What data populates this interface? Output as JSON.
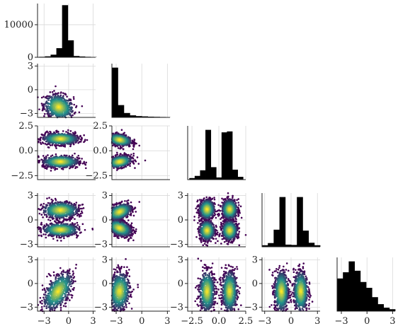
{
  "chart_data": {
    "type": "pairplot",
    "n_vars": 5,
    "grid": true,
    "colors": {
      "hist": "#000000",
      "density_low": "#440154",
      "density_mid": "#21918c",
      "density_high": "#fde725",
      "grid": "#d9d9d9",
      "axis": "#222222"
    },
    "variables": [
      {
        "index": 0,
        "range": [
          -3.8,
          3.3
        ],
        "ticks": [
          -3,
          0,
          3
        ],
        "tick_labels": [
          "−3",
          "0",
          "3"
        ]
      },
      {
        "index": 1,
        "range": [
          -3.5,
          3.3
        ],
        "ticks": [
          -3,
          0,
          3
        ],
        "tick_labels": [
          "−3",
          "0",
          "3"
        ]
      },
      {
        "index": 2,
        "range": [
          -2.9,
          2.5
        ],
        "ticks": [
          -2.5,
          0.0,
          2.5
        ],
        "tick_labels": [
          "−2.5",
          "0.0",
          "2.5"
        ]
      },
      {
        "index": 3,
        "range": [
          -3.3,
          3.3
        ],
        "ticks": [
          -3,
          0,
          3
        ],
        "tick_labels": [
          "−3",
          "0",
          "3"
        ]
      },
      {
        "index": 4,
        "range": [
          -3.5,
          3.3
        ],
        "ticks": [
          -3,
          0,
          3
        ],
        "tick_labels": [
          "−3",
          "0",
          "3"
        ]
      }
    ],
    "first_hist_yaxis": {
      "range": [
        0,
        16500
      ],
      "ticks": [
        0,
        10000
      ],
      "tick_labels": [
        "0",
        "10000"
      ]
    },
    "histograms": [
      {
        "var": 0,
        "bin_edges": [
          -3.6,
          -2.9,
          -2.2,
          -1.5,
          -0.8,
          -0.1,
          0.6,
          1.3,
          2.0,
          2.7,
          3.4
        ],
        "counts": [
          150,
          300,
          800,
          2800,
          16000,
          5200,
          400,
          250,
          150,
          80
        ]
      },
      {
        "var": 1,
        "bin_edges": [
          -3.5,
          -2.8,
          -2.1,
          -1.4,
          -0.7,
          0.0,
          0.7,
          1.4,
          2.1,
          2.8,
          3.3
        ],
        "counts": [
          17000,
          4200,
          1500,
          700,
          450,
          350,
          250,
          200,
          150,
          100
        ]
      },
      {
        "var": 2,
        "bin_edges": [
          -2.75,
          -2.25,
          -1.75,
          -1.25,
          -0.75,
          -0.25,
          0.25,
          0.75,
          1.25,
          1.75,
          2.25
        ],
        "counts": [
          500,
          1200,
          3000,
          16000,
          4000,
          700,
          15200,
          15500,
          3200,
          900
        ]
      },
      {
        "var": 3,
        "bin_edges": [
          -3.3,
          -2.64,
          -1.98,
          -1.32,
          -0.66,
          0.0,
          0.66,
          1.32,
          1.98,
          2.64,
          3.3
        ],
        "counts": [
          500,
          1200,
          5500,
          16000,
          700,
          600,
          16000,
          5200,
          1300,
          500
        ]
      },
      {
        "var": 4,
        "bin_edges": [
          -3.5,
          -2.82,
          -2.14,
          -1.46,
          -0.78,
          -0.1,
          0.58,
          1.26,
          1.94,
          2.62,
          3.3
        ],
        "counts": [
          8400,
          10000,
          12800,
          10400,
          7500,
          6000,
          3600,
          1800,
          900,
          500
        ]
      }
    ],
    "pairs": [
      {
        "x": 0,
        "y": 1,
        "clusters": [
          {
            "cx": -1.2,
            "cy": -2.2,
            "sx": 0.9,
            "sy": 0.8,
            "r": -0.2
          }
        ]
      },
      {
        "x": 0,
        "y": 2,
        "clusters": [
          {
            "cx": -1.0,
            "cy": 1.2,
            "sx": 1.1,
            "sy": 0.3,
            "r": 0.0
          },
          {
            "cx": -1.0,
            "cy": -1.1,
            "sx": 1.1,
            "sy": 0.3,
            "r": 0.0
          }
        ]
      },
      {
        "x": 1,
        "y": 2,
        "clusters": [
          {
            "cx": -2.6,
            "cy": 1.1,
            "sx": 0.7,
            "sy": 0.3,
            "r": -0.3
          },
          {
            "cx": -2.6,
            "cy": -1.1,
            "sx": 0.7,
            "sy": 0.3,
            "r": 0.3
          }
        ]
      },
      {
        "x": 0,
        "y": 3,
        "clusters": [
          {
            "cx": -1.0,
            "cy": 1.2,
            "sx": 1.1,
            "sy": 0.5,
            "r": 0.0
          },
          {
            "cx": -1.0,
            "cy": -1.2,
            "sx": 1.1,
            "sy": 0.4,
            "r": 0.0
          }
        ]
      },
      {
        "x": 1,
        "y": 3,
        "clusters": [
          {
            "cx": -2.6,
            "cy": 1.0,
            "sx": 0.7,
            "sy": 0.5,
            "r": 0.4
          },
          {
            "cx": -2.6,
            "cy": -1.0,
            "sx": 0.7,
            "sy": 0.5,
            "r": -0.4
          }
        ]
      },
      {
        "x": 2,
        "y": 3,
        "clusters": [
          {
            "cx": -1.1,
            "cy": 1.3,
            "sx": 0.35,
            "sy": 0.6,
            "r": 0.0
          },
          {
            "cx": -1.1,
            "cy": -1.3,
            "sx": 0.35,
            "sy": 0.6,
            "r": 0.0
          },
          {
            "cx": 1.0,
            "cy": 1.3,
            "sx": 0.35,
            "sy": 0.6,
            "r": 0.0
          },
          {
            "cx": 1.0,
            "cy": -1.3,
            "sx": 0.35,
            "sy": 0.6,
            "r": 0.0
          }
        ]
      },
      {
        "x": 0,
        "y": 4,
        "clusters": [
          {
            "cx": -1.3,
            "cy": -1.0,
            "sx": 0.9,
            "sy": 1.2,
            "r": 0.55
          }
        ]
      },
      {
        "x": 1,
        "y": 4,
        "clusters": [
          {
            "cx": -2.6,
            "cy": -1.0,
            "sx": 0.6,
            "sy": 1.2,
            "r": 0.1
          }
        ]
      },
      {
        "x": 2,
        "y": 4,
        "clusters": [
          {
            "cx": -1.1,
            "cy": -1.0,
            "sx": 0.35,
            "sy": 1.3,
            "r": 0.0
          },
          {
            "cx": 1.0,
            "cy": -1.0,
            "sx": 0.35,
            "sy": 1.3,
            "r": 0.0
          }
        ]
      },
      {
        "x": 3,
        "y": 4,
        "clusters": [
          {
            "cx": -1.1,
            "cy": -1.0,
            "sx": 0.4,
            "sy": 1.3,
            "r": 0.0
          },
          {
            "cx": 1.1,
            "cy": -1.0,
            "sx": 0.4,
            "sy": 1.3,
            "r": 0.0
          }
        ]
      }
    ]
  }
}
